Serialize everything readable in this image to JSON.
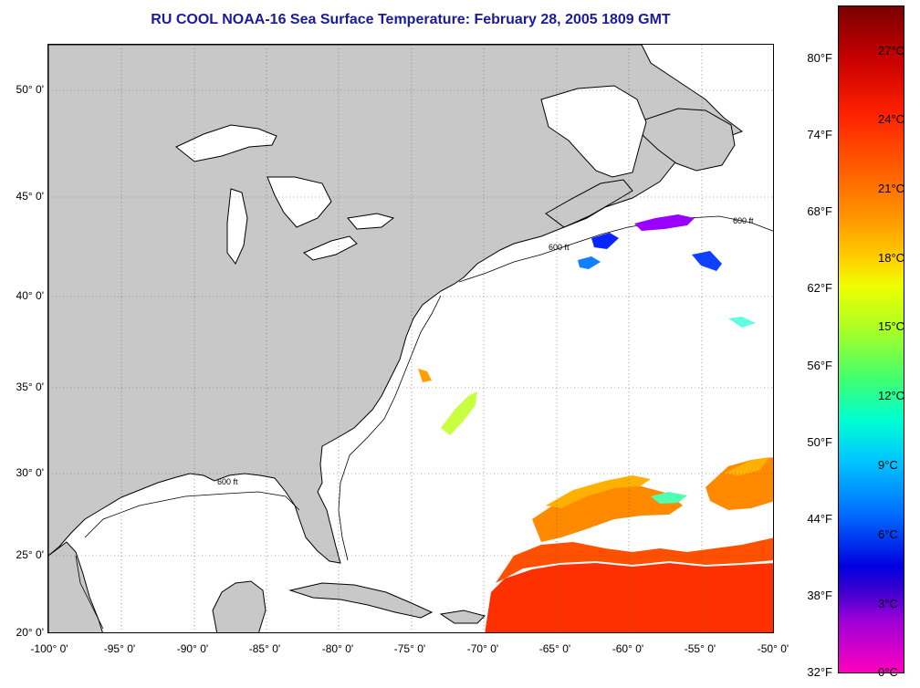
{
  "title": "RU COOL  NOAA-16  Sea Surface Temperature:  February 28, 2005 1809 GMT",
  "map": {
    "land_color": "#c8c8c8",
    "ocean_color": "#ffffff",
    "grid": true,
    "lat_labels": [
      "50° 0'",
      "45° 0'",
      "40° 0'",
      "35° 0'",
      "30° 0'",
      "25° 0'",
      "20° 0'"
    ],
    "lon_labels": [
      "-100° 0'",
      "-95° 0'",
      "-90° 0'",
      "-85° 0'",
      "-80° 0'",
      "-75° 0'",
      "-70° 0'",
      "-65° 0'",
      "-60° 0'",
      "-55° 0'",
      "-50° 0'"
    ],
    "isobath_label": "600 ft"
  },
  "colorbar": {
    "fahrenheit_labels": [
      "80°F",
      "74°F",
      "68°F",
      "62°F",
      "56°F",
      "50°F",
      "44°F",
      "38°F",
      "32°F"
    ],
    "celsius_labels": [
      "27°C",
      "24°C",
      "21°C",
      "18°C",
      "15°C",
      "12°C",
      "9°C",
      "6°C",
      "3°C",
      "0°C"
    ]
  }
}
